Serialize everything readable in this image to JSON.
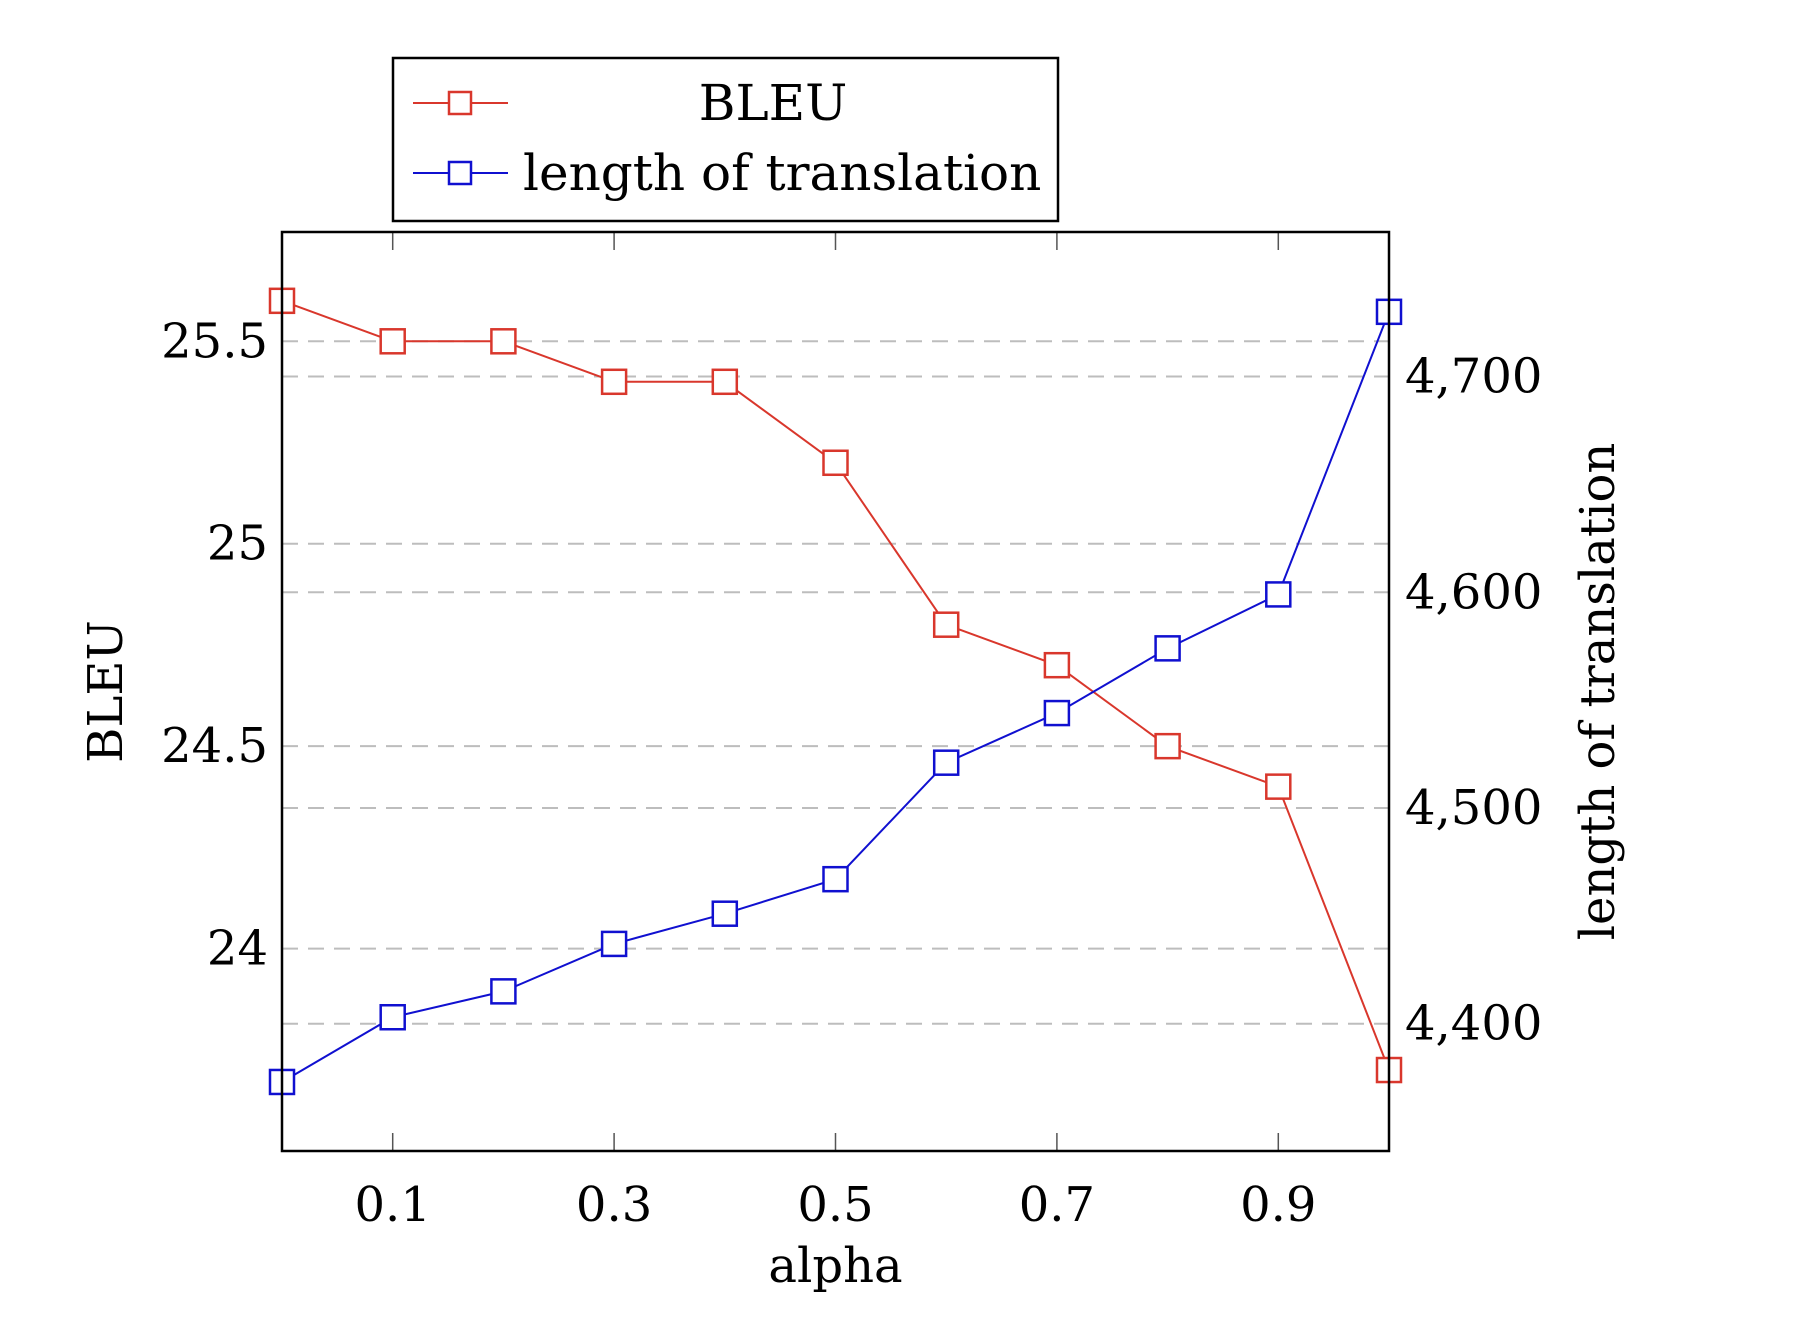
{
  "chart_data": {
    "type": "line",
    "x": [
      0.0,
      0.1,
      0.2,
      0.3,
      0.4,
      0.5,
      0.6,
      0.7,
      0.8,
      0.9,
      1.0
    ],
    "xlabel": "alpha",
    "xticks": [
      0.1,
      0.3,
      0.5,
      0.7,
      0.9
    ],
    "xtick_labels": [
      "0.1",
      "0.3",
      "0.5",
      "0.7",
      "0.9"
    ],
    "xlim": [
      0.0,
      1.0
    ],
    "y_left": {
      "label": "BLEU",
      "ylim": [
        23.5,
        25.77
      ],
      "ticks": [
        24,
        24.5,
        25,
        25.5
      ],
      "tick_labels": [
        "24",
        "24.5",
        "25",
        "25.5"
      ]
    },
    "y_right": {
      "label": "length of translation",
      "ylim": [
        4341,
        4767
      ],
      "ticks": [
        4400,
        4500,
        4600,
        4700
      ],
      "tick_labels": [
        "4,400",
        "4,500",
        "4,600",
        "4,700"
      ]
    },
    "series": [
      {
        "name": "BLEU",
        "axis": "left",
        "color": "#d9372c",
        "marker": "square",
        "values": [
          25.6,
          25.5,
          25.5,
          25.4,
          25.4,
          25.2,
          24.8,
          24.7,
          24.5,
          24.4,
          23.7
        ]
      },
      {
        "name": "length of translation",
        "axis": "right",
        "color": "#1010d0",
        "marker": "square",
        "values": [
          4373,
          4403,
          4415,
          4437,
          4451,
          4467,
          4521,
          4544,
          4574,
          4599,
          4730
        ]
      }
    ],
    "grid": "horizontal dashed",
    "legend_position": "top"
  }
}
